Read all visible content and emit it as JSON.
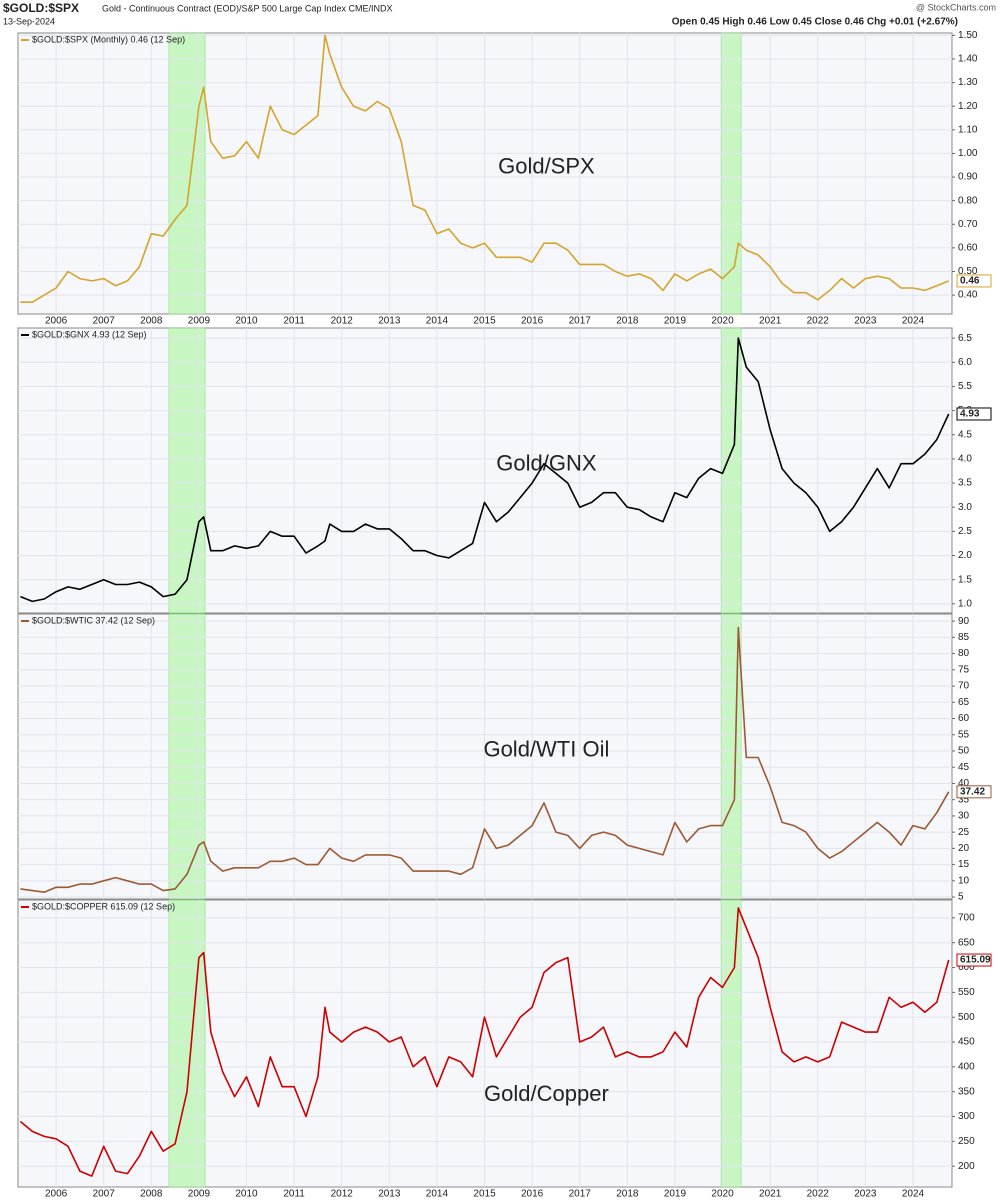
{
  "header": {
    "symbol": "$GOLD:$SPX",
    "description": "Gold - Continuous Contract (EOD)/S&P 500 Large Cap Index CME/INDX",
    "date": "13-Sep-2024",
    "quote": "Open 0.45  High 0.46  Low 0.45  Close 0.46  Chg +0.01 (+2.67%)",
    "credit": "@ StockCharts.com"
  },
  "chart_data": [
    {
      "type": "line",
      "annotation": "Gold/SPX",
      "x_labels": true,
      "grid": true,
      "highlights": [
        [
          2008.37,
          2009.13
        ],
        [
          2019.97,
          2020.39
        ]
      ],
      "xlim": [
        2005.2,
        2024.82
      ],
      "xticks": [
        2006,
        2007,
        2008,
        2009,
        2010,
        2011,
        2012,
        2013,
        2014,
        2015,
        2016,
        2017,
        2018,
        2019,
        2020,
        2021,
        2022,
        2023,
        2024
      ],
      "ylim": [
        0.32,
        1.51
      ],
      "yticks": [
        {
          "value": 0.4,
          "label": "0.40"
        },
        {
          "value": 0.5,
          "label": "0.50"
        },
        {
          "value": 0.6,
          "label": "0.60"
        },
        {
          "value": 0.7,
          "label": "0.70"
        },
        {
          "value": 0.8,
          "label": "0.80"
        },
        {
          "value": 0.9,
          "label": "0.90"
        },
        {
          "value": 1.0,
          "label": "1.00"
        },
        {
          "value": 1.1,
          "label": "1.10"
        },
        {
          "value": 1.2,
          "label": "1.20"
        },
        {
          "value": 1.3,
          "label": "1.30"
        },
        {
          "value": 1.4,
          "label": "1.40"
        },
        {
          "value": 1.5,
          "label": "1.50"
        }
      ],
      "x": [
        2005.25,
        2005.5,
        2005.75,
        2006,
        2006.25,
        2006.5,
        2006.75,
        2007,
        2007.25,
        2007.5,
        2007.75,
        2008,
        2008.25,
        2008.5,
        2008.75,
        2009,
        2009.1,
        2009.25,
        2009.5,
        2009.75,
        2010,
        2010.25,
        2010.5,
        2010.75,
        2011,
        2011.25,
        2011.5,
        2011.65,
        2011.75,
        2012,
        2012.25,
        2012.5,
        2012.75,
        2013,
        2013.25,
        2013.5,
        2013.75,
        2014,
        2014.25,
        2014.5,
        2014.75,
        2015,
        2015.25,
        2015.5,
        2015.75,
        2016,
        2016.25,
        2016.5,
        2016.75,
        2017,
        2017.25,
        2017.5,
        2017.75,
        2018,
        2018.25,
        2018.5,
        2018.75,
        2019,
        2019.25,
        2019.5,
        2019.75,
        2020,
        2020.25,
        2020.33,
        2020.5,
        2020.75,
        2021,
        2021.25,
        2021.5,
        2021.75,
        2022,
        2022.25,
        2022.5,
        2022.75,
        2023,
        2023.25,
        2023.5,
        2023.75,
        2024,
        2024.25,
        2024.5,
        2024.75
      ],
      "series": [
        {
          "name": "$GOLD:$SPX (Monthly) 0.46 (12 Sep)",
          "color": "#d4a42c",
          "values": [
            0.37,
            0.37,
            0.4,
            0.43,
            0.5,
            0.47,
            0.46,
            0.47,
            0.44,
            0.46,
            0.52,
            0.66,
            0.65,
            0.72,
            0.78,
            1.2,
            1.28,
            1.05,
            0.98,
            0.99,
            1.05,
            0.98,
            1.2,
            1.1,
            1.08,
            1.12,
            1.16,
            1.5,
            1.42,
            1.28,
            1.2,
            1.18,
            1.22,
            1.19,
            1.05,
            0.78,
            0.76,
            0.66,
            0.68,
            0.62,
            0.6,
            0.62,
            0.56,
            0.56,
            0.56,
            0.54,
            0.62,
            0.62,
            0.59,
            0.53,
            0.53,
            0.53,
            0.5,
            0.48,
            0.49,
            0.47,
            0.42,
            0.49,
            0.46,
            0.49,
            0.51,
            0.47,
            0.52,
            0.62,
            0.59,
            0.57,
            0.52,
            0.45,
            0.41,
            0.41,
            0.38,
            0.42,
            0.47,
            0.43,
            0.47,
            0.48,
            0.47,
            0.43,
            0.43,
            0.42,
            0.44,
            0.46
          ]
        }
      ]
    },
    {
      "type": "line",
      "annotation": "Gold/GNX",
      "x_labels": false,
      "grid": true,
      "highlights": [
        [
          2008.37,
          2009.13
        ],
        [
          2019.97,
          2020.39
        ]
      ],
      "xlim": [
        2005.2,
        2024.82
      ],
      "xticks": [
        2006,
        2007,
        2008,
        2009,
        2010,
        2011,
        2012,
        2013,
        2014,
        2015,
        2016,
        2017,
        2018,
        2019,
        2020,
        2021,
        2022,
        2023,
        2024
      ],
      "ylim": [
        0.81,
        6.71
      ],
      "yticks": [
        {
          "value": 1,
          "label": "1.0"
        },
        1.5,
        {
          "value": 2,
          "label": "2.0"
        },
        2.5,
        {
          "value": 3,
          "label": "3.0"
        },
        3.5,
        {
          "value": 4,
          "label": "4.0"
        },
        4.5,
        {
          "value": 5,
          "label": "5.0"
        },
        5.5,
        {
          "value": 6,
          "label": "6.0"
        },
        6.5
      ],
      "x": [
        2005.25,
        2005.5,
        2005.75,
        2006,
        2006.25,
        2006.5,
        2006.75,
        2007,
        2007.25,
        2007.5,
        2007.75,
        2008,
        2008.25,
        2008.5,
        2008.75,
        2009,
        2009.1,
        2009.25,
        2009.5,
        2009.75,
        2010,
        2010.25,
        2010.5,
        2010.75,
        2011,
        2011.25,
        2011.5,
        2011.65,
        2011.75,
        2012,
        2012.25,
        2012.5,
        2012.75,
        2013,
        2013.25,
        2013.5,
        2013.75,
        2014,
        2014.25,
        2014.5,
        2014.75,
        2015,
        2015.25,
        2015.5,
        2015.75,
        2016,
        2016.25,
        2016.5,
        2016.75,
        2017,
        2017.25,
        2017.5,
        2017.75,
        2018,
        2018.25,
        2018.5,
        2018.75,
        2019,
        2019.25,
        2019.5,
        2019.75,
        2020,
        2020.25,
        2020.33,
        2020.5,
        2020.75,
        2021,
        2021.25,
        2021.5,
        2021.75,
        2022,
        2022.25,
        2022.5,
        2022.75,
        2023,
        2023.25,
        2023.5,
        2023.75,
        2024,
        2024.25,
        2024.5,
        2024.75
      ],
      "series": [
        {
          "name": "$GOLD:$GNX 4.93 (12 Sep)",
          "color": "#000000",
          "values": [
            1.15,
            1.05,
            1.1,
            1.25,
            1.35,
            1.3,
            1.4,
            1.5,
            1.4,
            1.4,
            1.45,
            1.35,
            1.15,
            1.2,
            1.5,
            2.7,
            2.8,
            2.1,
            2.1,
            2.2,
            2.15,
            2.2,
            2.5,
            2.4,
            2.4,
            2.05,
            2.2,
            2.3,
            2.65,
            2.5,
            2.5,
            2.65,
            2.55,
            2.55,
            2.35,
            2.1,
            2.1,
            2.0,
            1.95,
            2.1,
            2.25,
            3.1,
            2.7,
            2.9,
            3.2,
            3.5,
            3.9,
            3.7,
            3.5,
            3.0,
            3.1,
            3.3,
            3.3,
            3.0,
            2.95,
            2.8,
            2.7,
            3.3,
            3.2,
            3.6,
            3.8,
            3.7,
            4.3,
            6.5,
            5.9,
            5.6,
            4.6,
            3.8,
            3.5,
            3.3,
            3.0,
            2.5,
            2.7,
            3.0,
            3.4,
            3.8,
            3.4,
            3.9,
            3.9,
            4.1,
            4.4,
            4.93
          ]
        }
      ]
    },
    {
      "type": "line",
      "annotation": "Gold/WTI Oil",
      "x_labels": false,
      "grid": true,
      "highlights": [
        [
          2008.37,
          2009.13
        ],
        [
          2019.97,
          2020.39
        ]
      ],
      "xlim": [
        2005.2,
        2024.82
      ],
      "xticks": [
        2006,
        2007,
        2008,
        2009,
        2010,
        2011,
        2012,
        2013,
        2014,
        2015,
        2016,
        2017,
        2018,
        2019,
        2020,
        2021,
        2022,
        2023,
        2024
      ],
      "ylim": [
        4.4,
        92.2
      ],
      "yticks": [
        5,
        10,
        15,
        20,
        25,
        30,
        35,
        40,
        45,
        50,
        55,
        60,
        65,
        70,
        75,
        80,
        85,
        90
      ],
      "x": [
        2005.25,
        2005.5,
        2005.75,
        2006,
        2006.25,
        2006.5,
        2006.75,
        2007,
        2007.25,
        2007.5,
        2007.75,
        2008,
        2008.25,
        2008.5,
        2008.75,
        2009,
        2009.1,
        2009.25,
        2009.5,
        2009.75,
        2010,
        2010.25,
        2010.5,
        2010.75,
        2011,
        2011.25,
        2011.5,
        2011.65,
        2011.75,
        2012,
        2012.25,
        2012.5,
        2012.75,
        2013,
        2013.25,
        2013.5,
        2013.75,
        2014,
        2014.25,
        2014.5,
        2014.75,
        2015,
        2015.25,
        2015.5,
        2015.75,
        2016,
        2016.25,
        2016.5,
        2016.75,
        2017,
        2017.25,
        2017.5,
        2017.75,
        2018,
        2018.25,
        2018.5,
        2018.75,
        2019,
        2019.25,
        2019.5,
        2019.75,
        2020,
        2020.25,
        2020.33,
        2020.5,
        2020.75,
        2021,
        2021.25,
        2021.5,
        2021.75,
        2022,
        2022.25,
        2022.5,
        2022.75,
        2023,
        2023.25,
        2023.5,
        2023.75,
        2024,
        2024.25,
        2024.5,
        2024.75
      ],
      "series": [
        {
          "name": "$GOLD:$WTIC 37.42 (12 Sep)",
          "color": "#9c5a34",
          "values": [
            7.5,
            7,
            6.5,
            8,
            8,
            9,
            9,
            10,
            11,
            10,
            9,
            9,
            7,
            7.5,
            12,
            21,
            22,
            16,
            13,
            14,
            14,
            14,
            16,
            16,
            17,
            15,
            15,
            18,
            20,
            17,
            16,
            18,
            18,
            18,
            17,
            13,
            13,
            13,
            13,
            12,
            14,
            26,
            20,
            21,
            24,
            27,
            34,
            25,
            24,
            20,
            24,
            25,
            24,
            21,
            20,
            19,
            18,
            28,
            22,
            26,
            27,
            27,
            35,
            88,
            48,
            48,
            39,
            28,
            27,
            25,
            20,
            17,
            19,
            22,
            25,
            28,
            25,
            21,
            27,
            26,
            31,
            37.42
          ]
        }
      ]
    },
    {
      "type": "line",
      "annotation": "Gold/Copper",
      "x_labels": true,
      "grid": true,
      "highlights": [
        [
          2008.37,
          2009.13
        ],
        [
          2019.97,
          2020.39
        ]
      ],
      "xlim": [
        2005.2,
        2024.82
      ],
      "xticks": [
        2006,
        2007,
        2008,
        2009,
        2010,
        2011,
        2012,
        2013,
        2014,
        2015,
        2016,
        2017,
        2018,
        2019,
        2020,
        2021,
        2022,
        2023,
        2024
      ],
      "ylim": [
        158,
        736
      ],
      "yticks": [
        200,
        250,
        300,
        350,
        400,
        450,
        500,
        550,
        600,
        650,
        700
      ],
      "x": [
        2005.25,
        2005.5,
        2005.75,
        2006,
        2006.25,
        2006.5,
        2006.75,
        2007,
        2007.25,
        2007.5,
        2007.75,
        2008,
        2008.25,
        2008.5,
        2008.75,
        2009,
        2009.1,
        2009.25,
        2009.5,
        2009.75,
        2010,
        2010.25,
        2010.5,
        2010.75,
        2011,
        2011.25,
        2011.5,
        2011.65,
        2011.75,
        2012,
        2012.25,
        2012.5,
        2012.75,
        2013,
        2013.25,
        2013.5,
        2013.75,
        2014,
        2014.25,
        2014.5,
        2014.75,
        2015,
        2015.25,
        2015.5,
        2015.75,
        2016,
        2016.25,
        2016.5,
        2016.75,
        2017,
        2017.25,
        2017.5,
        2017.75,
        2018,
        2018.25,
        2018.5,
        2018.75,
        2019,
        2019.25,
        2019.5,
        2019.75,
        2020,
        2020.25,
        2020.33,
        2020.5,
        2020.75,
        2021,
        2021.25,
        2021.5,
        2021.75,
        2022,
        2022.25,
        2022.5,
        2022.75,
        2023,
        2023.25,
        2023.5,
        2023.75,
        2024,
        2024.25,
        2024.5,
        2024.75
      ],
      "series": [
        {
          "name": "$GOLD:$COPPER 615.09 (12 Sep)",
          "color": "#cc0000",
          "values": [
            290,
            270,
            260,
            255,
            240,
            190,
            180,
            240,
            190,
            185,
            220,
            270,
            230,
            245,
            350,
            620,
            630,
            470,
            390,
            340,
            380,
            320,
            420,
            360,
            360,
            300,
            380,
            520,
            470,
            450,
            470,
            480,
            470,
            450,
            460,
            400,
            420,
            360,
            420,
            410,
            380,
            500,
            420,
            460,
            500,
            520,
            590,
            610,
            620,
            450,
            460,
            480,
            420,
            430,
            420,
            420,
            430,
            470,
            440,
            540,
            580,
            560,
            600,
            720,
            680,
            620,
            520,
            430,
            410,
            420,
            410,
            420,
            490,
            480,
            470,
            470,
            540,
            520,
            530,
            510,
            530,
            615.09
          ]
        }
      ]
    }
  ]
}
